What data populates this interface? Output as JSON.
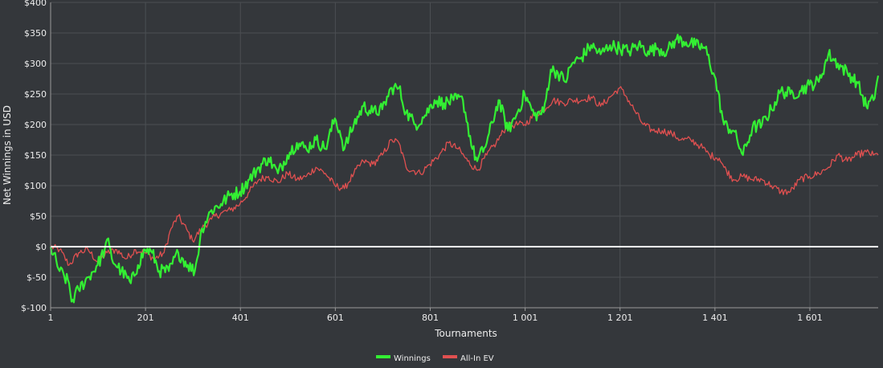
{
  "chart_data": {
    "type": "line",
    "title": "",
    "xlabel": "Tournaments",
    "ylabel": "Net Winnings in USD",
    "xlim": [
      1,
      1745
    ],
    "ylim": [
      -100,
      400
    ],
    "x_ticks": [
      1,
      201,
      401,
      601,
      801,
      1001,
      1201,
      1401,
      1601
    ],
    "x_tick_labels": [
      "1",
      "201",
      "401",
      "601",
      "801",
      "1 001",
      "1 201",
      "1 401",
      "1 601"
    ],
    "y_ticks": [
      -100,
      -50,
      0,
      50,
      100,
      150,
      200,
      250,
      300,
      350,
      400
    ],
    "y_tick_labels": [
      "$-100",
      "$-50",
      "$0",
      "$50",
      "$100",
      "$150",
      "$200",
      "$250",
      "$300",
      "$350",
      "$400"
    ],
    "grid": true,
    "legend_position": "bottom-center",
    "zero_line_color": "#ffffff",
    "series": [
      {
        "name": "Winnings",
        "color": "#33ee33",
        "points": [
          [
            1,
            0
          ],
          [
            20,
            -40
          ],
          [
            40,
            -60
          ],
          [
            45,
            -90
          ],
          [
            60,
            -70
          ],
          [
            80,
            -50
          ],
          [
            100,
            -30
          ],
          [
            115,
            -5
          ],
          [
            120,
            12
          ],
          [
            130,
            -20
          ],
          [
            150,
            -40
          ],
          [
            170,
            -60
          ],
          [
            185,
            -30
          ],
          [
            200,
            -5
          ],
          [
            215,
            -10
          ],
          [
            230,
            -40
          ],
          [
            250,
            -40
          ],
          [
            270,
            -10
          ],
          [
            290,
            -30
          ],
          [
            305,
            -40
          ],
          [
            320,
            30
          ],
          [
            340,
            60
          ],
          [
            360,
            70
          ],
          [
            380,
            85
          ],
          [
            400,
            90
          ],
          [
            420,
            110
          ],
          [
            440,
            130
          ],
          [
            460,
            145
          ],
          [
            480,
            120
          ],
          [
            500,
            150
          ],
          [
            520,
            170
          ],
          [
            540,
            160
          ],
          [
            560,
            175
          ],
          [
            580,
            160
          ],
          [
            600,
            210
          ],
          [
            610,
            190
          ],
          [
            620,
            160
          ],
          [
            640,
            200
          ],
          [
            660,
            230
          ],
          [
            680,
            220
          ],
          [
            700,
            225
          ],
          [
            720,
            260
          ],
          [
            735,
            260
          ],
          [
            750,
            220
          ],
          [
            770,
            200
          ],
          [
            790,
            215
          ],
          [
            810,
            240
          ],
          [
            830,
            235
          ],
          [
            850,
            240
          ],
          [
            870,
            240
          ],
          [
            890,
            160
          ],
          [
            900,
            140
          ],
          [
            920,
            170
          ],
          [
            945,
            240
          ],
          [
            965,
            190
          ],
          [
            985,
            220
          ],
          [
            1000,
            250
          ],
          [
            1020,
            215
          ],
          [
            1040,
            220
          ],
          [
            1055,
            290
          ],
          [
            1070,
            285
          ],
          [
            1085,
            270
          ],
          [
            1100,
            300
          ],
          [
            1120,
            310
          ],
          [
            1140,
            330
          ],
          [
            1160,
            315
          ],
          [
            1180,
            330
          ],
          [
            1200,
            325
          ],
          [
            1220,
            320
          ],
          [
            1240,
            330
          ],
          [
            1260,
            320
          ],
          [
            1280,
            325
          ],
          [
            1300,
            320
          ],
          [
            1320,
            340
          ],
          [
            1340,
            335
          ],
          [
            1360,
            330
          ],
          [
            1380,
            325
          ],
          [
            1400,
            280
          ],
          [
            1420,
            200
          ],
          [
            1440,
            190
          ],
          [
            1460,
            150
          ],
          [
            1480,
            195
          ],
          [
            1500,
            200
          ],
          [
            1520,
            225
          ],
          [
            1540,
            255
          ],
          [
            1560,
            250
          ],
          [
            1580,
            255
          ],
          [
            1600,
            265
          ],
          [
            1620,
            270
          ],
          [
            1640,
            315
          ],
          [
            1660,
            300
          ],
          [
            1680,
            285
          ],
          [
            1700,
            270
          ],
          [
            1720,
            230
          ],
          [
            1735,
            240
          ],
          [
            1745,
            280
          ]
        ]
      },
      {
        "name": "All-In EV",
        "color": "#e05050",
        "points": [
          [
            1,
            0
          ],
          [
            20,
            -5
          ],
          [
            40,
            -30
          ],
          [
            60,
            -10
          ],
          [
            80,
            -5
          ],
          [
            100,
            -25
          ],
          [
            120,
            -10
          ],
          [
            140,
            -5
          ],
          [
            160,
            -20
          ],
          [
            180,
            -5
          ],
          [
            200,
            -10
          ],
          [
            220,
            -20
          ],
          [
            240,
            -10
          ],
          [
            255,
            30
          ],
          [
            270,
            50
          ],
          [
            290,
            25
          ],
          [
            300,
            10
          ],
          [
            320,
            30
          ],
          [
            340,
            45
          ],
          [
            360,
            55
          ],
          [
            380,
            60
          ],
          [
            400,
            70
          ],
          [
            420,
            90
          ],
          [
            440,
            110
          ],
          [
            460,
            115
          ],
          [
            480,
            105
          ],
          [
            500,
            120
          ],
          [
            520,
            110
          ],
          [
            540,
            115
          ],
          [
            560,
            130
          ],
          [
            580,
            120
          ],
          [
            600,
            100
          ],
          [
            620,
            95
          ],
          [
            640,
            120
          ],
          [
            660,
            140
          ],
          [
            680,
            135
          ],
          [
            700,
            150
          ],
          [
            720,
            175
          ],
          [
            735,
            170
          ],
          [
            750,
            130
          ],
          [
            780,
            120
          ],
          [
            800,
            135
          ],
          [
            820,
            150
          ],
          [
            840,
            170
          ],
          [
            860,
            160
          ],
          [
            880,
            140
          ],
          [
            900,
            125
          ],
          [
            920,
            150
          ],
          [
            940,
            170
          ],
          [
            960,
            195
          ],
          [
            980,
            200
          ],
          [
            1000,
            200
          ],
          [
            1020,
            215
          ],
          [
            1040,
            225
          ],
          [
            1060,
            240
          ],
          [
            1080,
            235
          ],
          [
            1100,
            240
          ],
          [
            1120,
            240
          ],
          [
            1140,
            245
          ],
          [
            1160,
            230
          ],
          [
            1180,
            245
          ],
          [
            1200,
            260
          ],
          [
            1215,
            245
          ],
          [
            1230,
            225
          ],
          [
            1250,
            200
          ],
          [
            1270,
            190
          ],
          [
            1290,
            190
          ],
          [
            1310,
            185
          ],
          [
            1330,
            175
          ],
          [
            1350,
            175
          ],
          [
            1370,
            165
          ],
          [
            1390,
            150
          ],
          [
            1410,
            145
          ],
          [
            1420,
            130
          ],
          [
            1440,
            110
          ],
          [
            1460,
            115
          ],
          [
            1480,
            110
          ],
          [
            1500,
            110
          ],
          [
            1520,
            100
          ],
          [
            1540,
            90
          ],
          [
            1560,
            90
          ],
          [
            1580,
            110
          ],
          [
            1600,
            115
          ],
          [
            1620,
            120
          ],
          [
            1640,
            130
          ],
          [
            1660,
            150
          ],
          [
            1680,
            140
          ],
          [
            1700,
            150
          ],
          [
            1720,
            155
          ],
          [
            1735,
            150
          ],
          [
            1745,
            150
          ]
        ]
      }
    ]
  }
}
